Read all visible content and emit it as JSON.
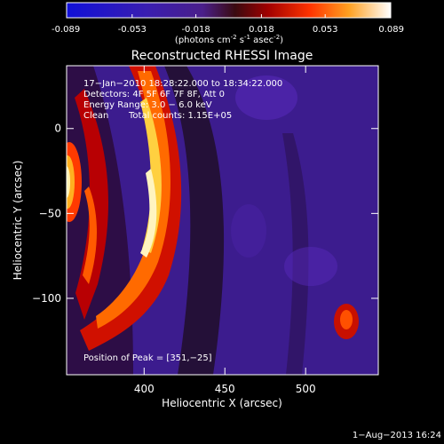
{
  "colorbar": {
    "ticks": [
      "-0.089",
      "-0.053",
      "-0.018",
      "0.018",
      "0.053",
      "0.089"
    ],
    "tick_values": [
      -0.089,
      -0.053,
      -0.018,
      0.018,
      0.053,
      0.089
    ],
    "units_main": "(photons cm",
    "units_sup1": "-2",
    "units_mid": " s",
    "units_sup2": "-1",
    "units_mid2": " asec",
    "units_sup3": "-2",
    "units_end": ")"
  },
  "chart_data": {
    "type": "heatmap",
    "title": "Reconstructed RHESSI Image",
    "xlabel": "Heliocentric X (arcsec)",
    "ylabel": "Heliocentric Y (arcsec)",
    "xlim": [
      352,
      545
    ],
    "ylim": [
      -145,
      37
    ],
    "x_ticks": [
      400,
      450,
      500
    ],
    "y_ticks": [
      0,
      -50,
      -100
    ],
    "x_tick_labels": [
      "400",
      "450",
      "500"
    ],
    "y_tick_labels": [
      "0",
      "−50",
      "−100"
    ],
    "colormap": "blue-purple-red-orange-yellow-white",
    "value_range": [
      -0.089,
      0.089
    ],
    "annotations": {
      "time": "17−Jan−2010 18:28:22.000 to 18:34:22.000",
      "detectors": "Detectors: 4F 5F 6F 7F 8F, Att 0",
      "energy": "Energy Range: 3.0 − 6.0 keV",
      "clean": "Clean",
      "counts": "Total counts: 1.15E+05",
      "peak": "Position of Peak = [351,−25]"
    }
  },
  "footer": {
    "date": "1−Aug−2013 16:24"
  },
  "colors": {
    "background": "#000000",
    "text": "#ffffff"
  }
}
